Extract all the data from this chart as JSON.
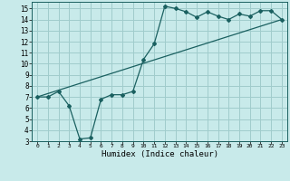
{
  "title": "",
  "xlabel": "Humidex (Indice chaleur)",
  "ylabel": "",
  "bg_color": "#c8eaea",
  "grid_color": "#a0cccc",
  "line_color": "#1a6060",
  "xlim": [
    -0.5,
    23.5
  ],
  "ylim": [
    3,
    15.6
  ],
  "xticks": [
    0,
    1,
    2,
    3,
    4,
    5,
    6,
    7,
    8,
    9,
    10,
    11,
    12,
    13,
    14,
    15,
    16,
    17,
    18,
    19,
    20,
    21,
    22,
    23
  ],
  "yticks": [
    3,
    4,
    5,
    6,
    7,
    8,
    9,
    10,
    11,
    12,
    13,
    14,
    15
  ],
  "curve_x": [
    0,
    1,
    2,
    3,
    4,
    5,
    6,
    7,
    8,
    9,
    10,
    11,
    12,
    13,
    14,
    15,
    16,
    17,
    18,
    19,
    20,
    21,
    22,
    23
  ],
  "curve_y": [
    7.0,
    7.0,
    7.5,
    6.2,
    3.2,
    3.3,
    6.8,
    7.2,
    7.2,
    7.5,
    10.4,
    11.8,
    15.2,
    15.0,
    14.7,
    14.2,
    14.7,
    14.3,
    14.0,
    14.5,
    14.3,
    14.8,
    14.8,
    14.0
  ],
  "line_x": [
    0,
    23
  ],
  "line_y": [
    7.0,
    14.0
  ],
  "figsize": [
    3.2,
    2.0
  ],
  "dpi": 100
}
